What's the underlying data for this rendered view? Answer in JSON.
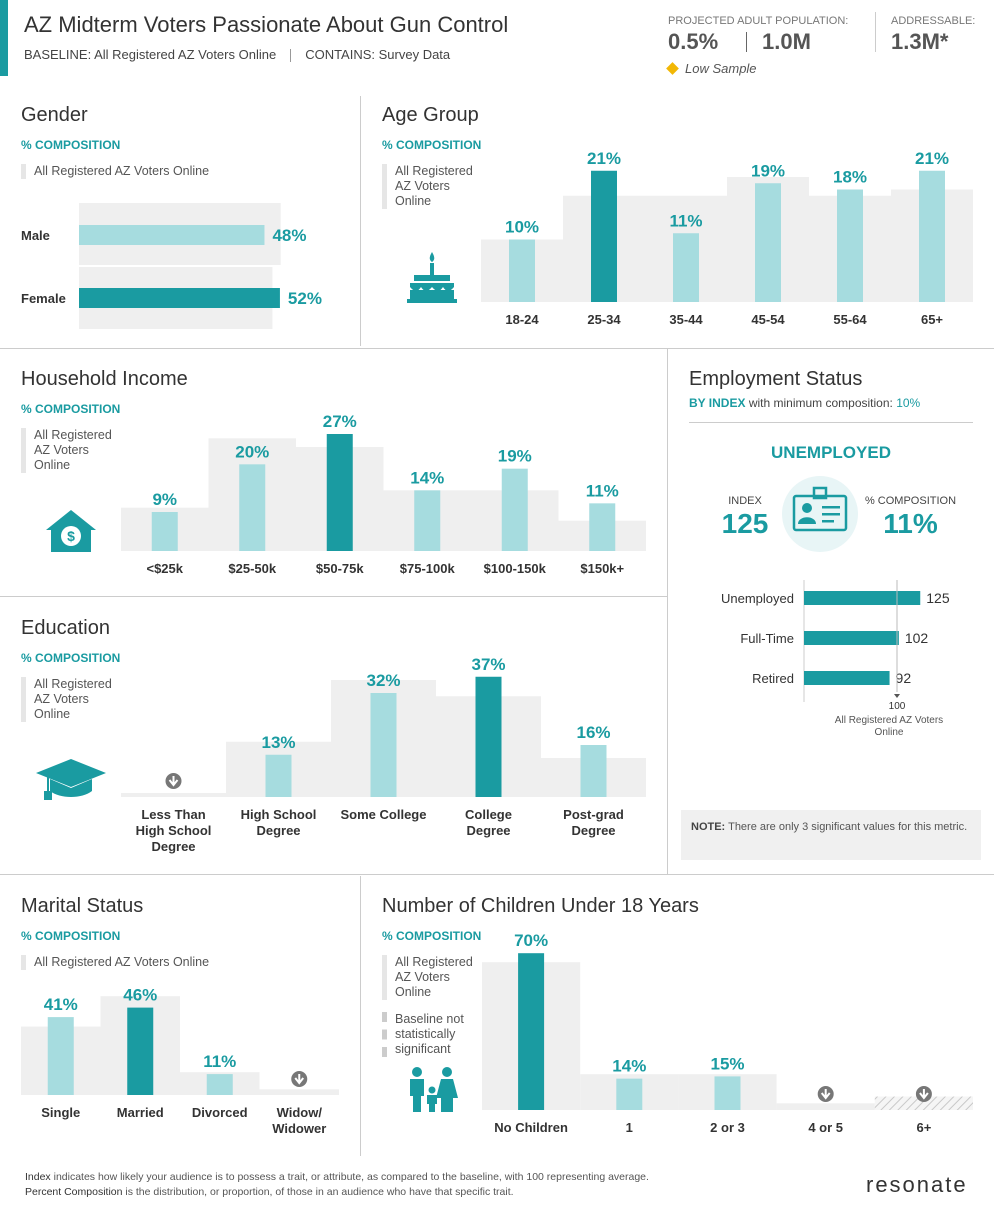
{
  "header": {
    "title": "AZ Midterm Voters Passionate About Gun Control",
    "baseline": "BASELINE: All Registered AZ Voters Online",
    "contains": "CONTAINS: Survey Data",
    "projected_label": "PROJECTED ADULT POPULATION:",
    "projected_pct": "0.5%",
    "projected_count": "1.0M",
    "addressable_label": "ADDRESSABLE:",
    "addressable_value": "1.3M*",
    "low_sample": "Low Sample"
  },
  "common": {
    "composition": "% COMPOSITION",
    "baseline_short": "All Registered AZ Voters Online",
    "baseline_l1": "All Registered",
    "baseline_l2": "AZ Voters",
    "baseline_l3": "Online"
  },
  "colors": {
    "teal": "#1a9ba1",
    "light_teal": "#a6dcdf",
    "baseline_grey": "#efefef"
  },
  "icons": {
    "age": "birthday-cake-icon",
    "income": "house-dollar-icon",
    "education": "graduation-cap-icon",
    "employment": "id-badge-icon",
    "children": "family-icon",
    "low_sample": "diamond-icon",
    "insignificant": "down-arrow-circle-icon"
  },
  "chart_data": [
    {
      "id": "gender",
      "type": "bar",
      "orientation": "horizontal",
      "title": "Gender",
      "categories": [
        "Male",
        "Female"
      ],
      "labels": [
        "48%",
        "52%"
      ],
      "series": [
        {
          "name": "Audience",
          "values": [
            48,
            52
          ]
        },
        {
          "name": "Baseline",
          "values": [
            49,
            47
          ]
        }
      ],
      "highlight": "Female"
    },
    {
      "id": "age",
      "type": "bar",
      "title": "Age Group",
      "categories": [
        "18-24",
        "25-34",
        "35-44",
        "45-54",
        "55-64",
        "65+"
      ],
      "labels": [
        "10%",
        "21%",
        "11%",
        "19%",
        "18%",
        "21%"
      ],
      "series": [
        {
          "name": "Audience",
          "values": [
            10,
            21,
            11,
            19,
            18,
            21
          ]
        },
        {
          "name": "Baseline",
          "values": [
            10,
            17,
            17,
            20,
            17,
            18
          ]
        }
      ],
      "highlight": "25-34",
      "ylim": [
        0,
        24
      ]
    },
    {
      "id": "income",
      "type": "bar",
      "title": "Household Income",
      "categories": [
        "<$25k",
        "$25-50k",
        "$50-75k",
        "$75-100k",
        "$100-150k",
        "$150k+"
      ],
      "labels": [
        "9%",
        "20%",
        "27%",
        "14%",
        "19%",
        "11%"
      ],
      "series": [
        {
          "name": "Audience",
          "values": [
            9,
            20,
            27,
            14,
            19,
            11
          ]
        },
        {
          "name": "Baseline",
          "values": [
            10,
            26,
            24,
            14,
            14,
            7
          ]
        }
      ],
      "highlight": "$50-75k",
      "ylim": [
        0,
        30
      ]
    },
    {
      "id": "education",
      "type": "bar",
      "title": "Education",
      "categories": [
        "Less Than High School Degree",
        "High School Degree",
        "Some College",
        "College Degree",
        "Post-grad Degree"
      ],
      "category_lines": [
        [
          "Less Than",
          "High School",
          "Degree"
        ],
        [
          "High School",
          "Degree"
        ],
        [
          "Some College"
        ],
        [
          "College",
          "Degree"
        ],
        [
          "Post-grad",
          "Degree"
        ]
      ],
      "labels": [
        "",
        "13%",
        "32%",
        "37%",
        "16%"
      ],
      "series": [
        {
          "name": "Audience",
          "values": [
            0,
            13,
            32,
            37,
            16
          ]
        },
        {
          "name": "Baseline",
          "values": [
            1,
            17,
            36,
            31,
            12
          ]
        }
      ],
      "insignificant": [
        "Less Than High School Degree"
      ],
      "highlight": "College Degree",
      "ylim": [
        0,
        40
      ]
    },
    {
      "id": "employment",
      "type": "bar",
      "orientation": "horizontal",
      "title": "Employment Status",
      "subtitle_prefix": "BY INDEX",
      "subtitle_text": "with minimum composition:",
      "subtitle_value": "10%",
      "top_label": "UNEMPLOYED",
      "index_label": "INDEX",
      "index_value": "125",
      "comp_label": "% COMPOSITION",
      "comp_value": "11%",
      "categories": [
        "Unemployed",
        "Full-Time",
        "Retired"
      ],
      "values": [
        125,
        102,
        92
      ],
      "baseline_index": 100,
      "baseline_label": "100",
      "baseline_name_l1": "All Registered AZ Voters",
      "baseline_name_l2": "Online",
      "note_bold": "NOTE:",
      "note_text": "There are only 3 significant values for this metric."
    },
    {
      "id": "marital",
      "type": "bar",
      "title": "Marital Status",
      "categories": [
        "Single",
        "Married",
        "Divorced",
        "Widow/ Widower"
      ],
      "category_lines": [
        [
          "Single"
        ],
        [
          "Married"
        ],
        [
          "Divorced"
        ],
        [
          "Widow/",
          "Widower"
        ]
      ],
      "labels": [
        "41%",
        "46%",
        "11%",
        ""
      ],
      "series": [
        {
          "name": "Audience",
          "values": [
            41,
            46,
            11,
            0
          ]
        },
        {
          "name": "Baseline",
          "values": [
            36,
            52,
            12,
            3
          ]
        }
      ],
      "insignificant": [
        "Widow/ Widower"
      ],
      "highlight": "Married",
      "ylim": [
        0,
        50
      ]
    },
    {
      "id": "children",
      "type": "bar",
      "title": "Number of Children Under 18 Years",
      "categories": [
        "No Children",
        "1",
        "2 or 3",
        "4 or 5",
        "6+"
      ],
      "labels": [
        "70%",
        "14%",
        "15%",
        "",
        ""
      ],
      "series": [
        {
          "name": "Audience",
          "values": [
            70,
            14,
            15,
            0,
            0
          ]
        },
        {
          "name": "Baseline",
          "values": [
            66,
            16,
            16,
            3,
            6
          ]
        }
      ],
      "insignificant": [
        "4 or 5",
        "6+"
      ],
      "baseline_not_significant": [
        "6+"
      ],
      "legend_not_sig_l1": "Baseline not",
      "legend_not_sig_l2": "statistically",
      "legend_not_sig_l3": "significant",
      "highlight": "No Children",
      "ylim": [
        0,
        75
      ]
    }
  ],
  "footer": {
    "index_term": "Index",
    "index_text": "indicates how likely your audience is to possess a trait, or attribute, as compared to the baseline, with 100 representing average.",
    "comp_term": "Percent Composition",
    "comp_text": "is the distribution, or proportion, of those in an audience who have that specific trait.",
    "logo": "resonate"
  }
}
